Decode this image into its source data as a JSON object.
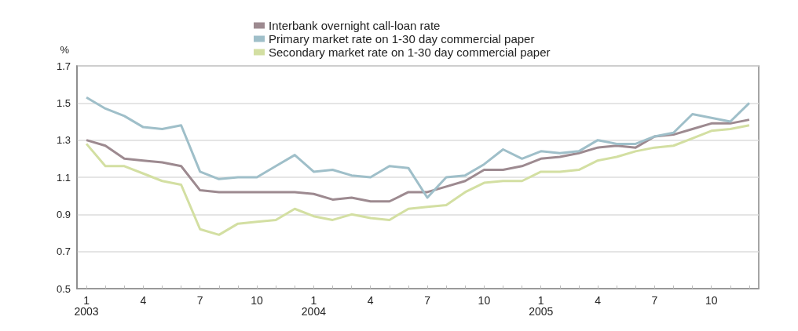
{
  "chart_data": {
    "type": "line",
    "ylabel": "%",
    "categories": [
      "1\n2003",
      null,
      null,
      "4",
      null,
      null,
      "7",
      null,
      null,
      "10",
      null,
      null,
      "1\n2004",
      null,
      null,
      "4",
      null,
      null,
      "7",
      null,
      null,
      "10",
      null,
      null,
      "1\n2005",
      null,
      null,
      "4",
      null,
      null,
      "7",
      null,
      null,
      "10",
      null,
      null
    ],
    "series": [
      {
        "name": "Interbank overnight call-loan rate",
        "color": "#9d8a90",
        "values": [
          1.3,
          1.27,
          1.2,
          1.19,
          1.18,
          1.16,
          1.03,
          1.02,
          1.02,
          1.02,
          1.02,
          1.02,
          1.01,
          0.98,
          0.99,
          0.97,
          0.97,
          1.02,
          1.02,
          1.05,
          1.08,
          1.14,
          1.14,
          1.16,
          1.2,
          1.21,
          1.23,
          1.26,
          1.27,
          1.26,
          1.32,
          1.33,
          1.36,
          1.39,
          1.39,
          1.41
        ]
      },
      {
        "name": "Primary market rate on 1-30 day commercial paper",
        "color": "#9fbfc9",
        "values": [
          1.53,
          1.47,
          1.43,
          1.37,
          1.36,
          1.38,
          1.13,
          1.09,
          1.1,
          1.1,
          1.16,
          1.22,
          1.13,
          1.14,
          1.11,
          1.1,
          1.16,
          1.15,
          0.99,
          1.1,
          1.11,
          1.17,
          1.25,
          1.2,
          1.24,
          1.23,
          1.24,
          1.3,
          1.28,
          1.28,
          1.32,
          1.34,
          1.44,
          1.42,
          1.4,
          1.5
        ]
      },
      {
        "name": "Secondary market rate on 1-30 day commercial paper",
        "color": "#d3dfa2",
        "values": [
          1.28,
          1.16,
          1.16,
          1.12,
          1.08,
          1.06,
          0.82,
          0.79,
          0.85,
          0.86,
          0.87,
          0.93,
          0.89,
          0.87,
          0.9,
          0.88,
          0.87,
          0.93,
          0.94,
          0.95,
          1.02,
          1.07,
          1.08,
          1.08,
          1.13,
          1.13,
          1.14,
          1.19,
          1.21,
          1.24,
          1.26,
          1.27,
          1.31,
          1.35,
          1.36,
          1.38
        ]
      }
    ],
    "ylim": [
      0.5,
      1.7
    ],
    "yticks": [
      0.5,
      0.7,
      0.9,
      1.1,
      1.3,
      1.5,
      1.7
    ],
    "grid": "y",
    "legend": "top",
    "marker": "none",
    "line_style": "solid"
  }
}
